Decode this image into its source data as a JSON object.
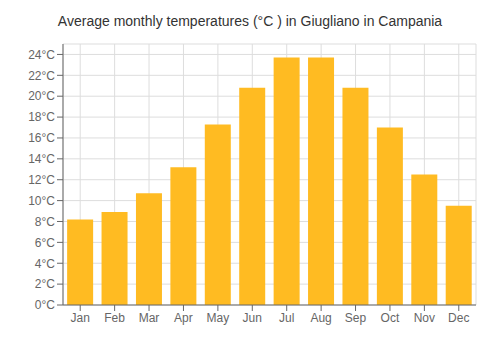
{
  "chart_data": {
    "type": "bar",
    "title": "Average monthly temperatures (°C ) in Giugliano in Campania",
    "categories": [
      "Jan",
      "Feb",
      "Mar",
      "Apr",
      "May",
      "Jun",
      "Jul",
      "Aug",
      "Sep",
      "Oct",
      "Nov",
      "Dec"
    ],
    "values": [
      8.2,
      8.9,
      10.7,
      13.2,
      17.3,
      20.8,
      23.7,
      23.7,
      20.8,
      17.0,
      12.5,
      9.5
    ],
    "color": "#FFBB22",
    "ylim": [
      0,
      25
    ],
    "yticks": [
      {
        "value": 0,
        "label": "0°C"
      },
      {
        "value": 2,
        "label": "2°C"
      },
      {
        "value": 4,
        "label": "4°C"
      },
      {
        "value": 6,
        "label": "6°C"
      },
      {
        "value": 8,
        "label": "8°C"
      },
      {
        "value": 10,
        "label": "10°C"
      },
      {
        "value": 12,
        "label": "12°C"
      },
      {
        "value": 14,
        "label": "14°C"
      },
      {
        "value": 16,
        "label": "16°C"
      },
      {
        "value": 18,
        "label": "18°C"
      },
      {
        "value": 20,
        "label": "20°C"
      },
      {
        "value": 22,
        "label": "22°C"
      },
      {
        "value": 24,
        "label": "24°C"
      }
    ],
    "grid": true
  }
}
